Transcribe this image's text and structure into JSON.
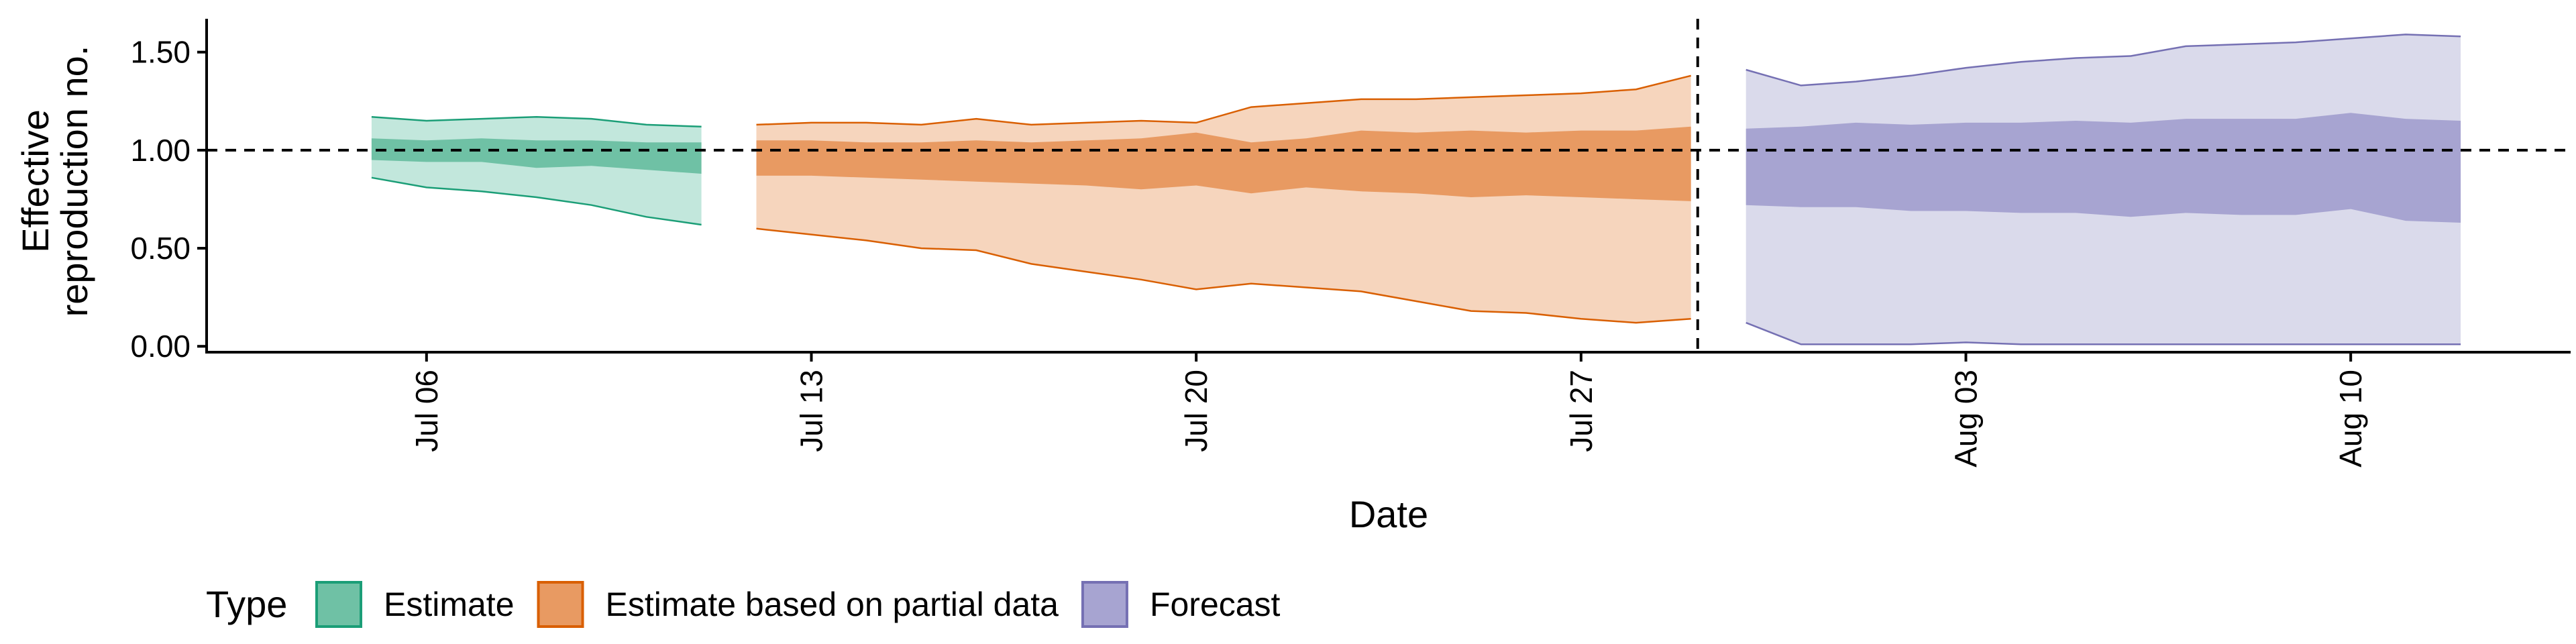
{
  "chart_data": {
    "type": "area",
    "title": "",
    "xlabel": "Date",
    "ylabel_lines": [
      "Effective",
      "reproduction no."
    ],
    "x_range": [
      "2020-07-02",
      "2020-08-14"
    ],
    "ylim": [
      -0.03,
      1.67
    ],
    "yticks": [
      0.0,
      0.5,
      1.0,
      1.5
    ],
    "ytick_labels": [
      "0.00",
      "0.50",
      "1.00",
      "1.50"
    ],
    "xticks": [
      "2020-07-06",
      "2020-07-13",
      "2020-07-20",
      "2020-07-27",
      "2020-08-03",
      "2020-08-10"
    ],
    "xtick_labels": [
      "Jul 06",
      "Jul 13",
      "Jul 20",
      "Jul 27",
      "Aug 03",
      "Aug 10"
    ],
    "reference_lines": {
      "horizontal_y": 1.0,
      "vertical_x": "2020-07-29"
    },
    "grid": false,
    "legend": {
      "title": "Type",
      "position": "bottom-left",
      "entries": [
        {
          "label": "Estimate",
          "series_index": 0
        },
        {
          "label": "Estimate based on partial data",
          "series_index": 1
        },
        {
          "label": "Forecast",
          "series_index": 2
        }
      ]
    },
    "series": [
      {
        "name": "Estimate",
        "fill_outer": "#c2e7dc",
        "fill_inner": "#6fc1a5",
        "stroke": "#1b9e77",
        "x": [
          "2020-07-05",
          "2020-07-06",
          "2020-07-07",
          "2020-07-08",
          "2020-07-09",
          "2020-07-10",
          "2020-07-11"
        ],
        "upper90": [
          1.17,
          1.15,
          1.16,
          1.17,
          1.16,
          1.13,
          1.12
        ],
        "upper50": [
          1.06,
          1.05,
          1.06,
          1.05,
          1.05,
          1.04,
          1.04
        ],
        "lower50": [
          0.95,
          0.94,
          0.94,
          0.91,
          0.92,
          0.9,
          0.88
        ],
        "lower90": [
          0.86,
          0.81,
          0.79,
          0.76,
          0.72,
          0.66,
          0.62
        ]
      },
      {
        "name": "Estimate based on partial data",
        "fill_outer": "#f6d5bd",
        "fill_inner": "#e89a62",
        "stroke": "#d95f02",
        "x": [
          "2020-07-12",
          "2020-07-13",
          "2020-07-14",
          "2020-07-15",
          "2020-07-16",
          "2020-07-17",
          "2020-07-18",
          "2020-07-19",
          "2020-07-20",
          "2020-07-21",
          "2020-07-22",
          "2020-07-23",
          "2020-07-24",
          "2020-07-25",
          "2020-07-26",
          "2020-07-27",
          "2020-07-28",
          "2020-07-29"
        ],
        "upper90": [
          1.13,
          1.14,
          1.14,
          1.13,
          1.16,
          1.13,
          1.14,
          1.15,
          1.14,
          1.22,
          1.24,
          1.26,
          1.26,
          1.27,
          1.28,
          1.29,
          1.31,
          1.38
        ],
        "upper50": [
          1.05,
          1.05,
          1.04,
          1.04,
          1.05,
          1.04,
          1.05,
          1.06,
          1.09,
          1.04,
          1.06,
          1.1,
          1.09,
          1.1,
          1.09,
          1.1,
          1.1,
          1.12
        ],
        "lower50": [
          0.87,
          0.87,
          0.86,
          0.85,
          0.84,
          0.83,
          0.82,
          0.8,
          0.82,
          0.78,
          0.81,
          0.79,
          0.78,
          0.76,
          0.77,
          0.76,
          0.75,
          0.74
        ],
        "lower90": [
          0.6,
          0.57,
          0.54,
          0.5,
          0.49,
          0.42,
          0.38,
          0.34,
          0.29,
          0.32,
          0.3,
          0.28,
          0.23,
          0.18,
          0.17,
          0.14,
          0.12,
          0.14
        ]
      },
      {
        "name": "Forecast",
        "fill_outer": "#dadaeb",
        "fill_inner": "#a7a4d1",
        "stroke": "#7570b3",
        "x": [
          "2020-07-30",
          "2020-07-31",
          "2020-08-01",
          "2020-08-02",
          "2020-08-03",
          "2020-08-04",
          "2020-08-05",
          "2020-08-06",
          "2020-08-07",
          "2020-08-08",
          "2020-08-09",
          "2020-08-10",
          "2020-08-11",
          "2020-08-12"
        ],
        "upper90": [
          1.41,
          1.33,
          1.35,
          1.38,
          1.42,
          1.45,
          1.47,
          1.48,
          1.53,
          1.54,
          1.55,
          1.57,
          1.59,
          1.58
        ],
        "upper50": [
          1.11,
          1.12,
          1.14,
          1.13,
          1.14,
          1.14,
          1.15,
          1.14,
          1.16,
          1.16,
          1.16,
          1.19,
          1.16,
          1.15
        ],
        "lower50": [
          0.72,
          0.71,
          0.71,
          0.69,
          0.69,
          0.68,
          0.68,
          0.66,
          0.68,
          0.67,
          0.67,
          0.7,
          0.64,
          0.63
        ],
        "lower90": [
          0.12,
          0.01,
          0.01,
          0.01,
          0.02,
          0.01,
          0.01,
          0.01,
          0.01,
          0.01,
          0.01,
          0.01,
          0.01,
          0.01
        ]
      }
    ]
  }
}
